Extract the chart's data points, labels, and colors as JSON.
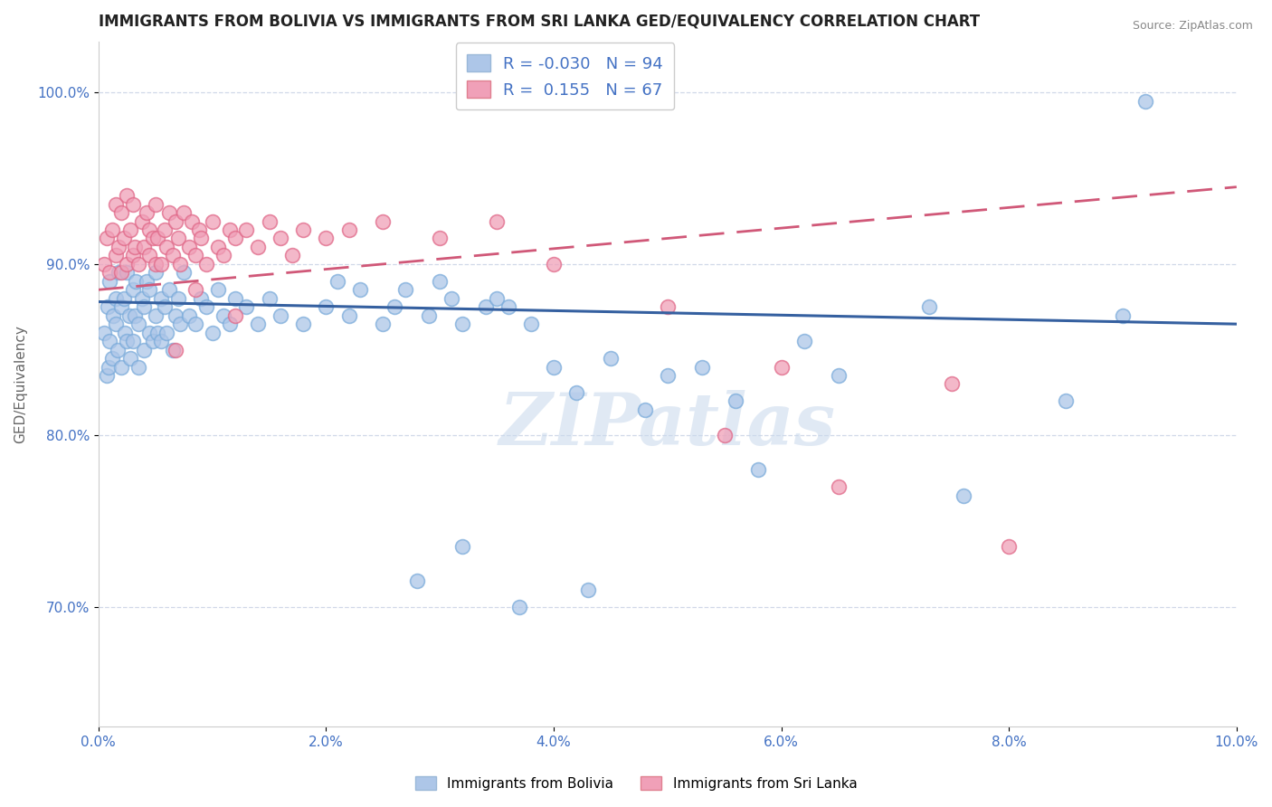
{
  "title": "IMMIGRANTS FROM BOLIVIA VS IMMIGRANTS FROM SRI LANKA GED/EQUIVALENCY CORRELATION CHART",
  "source": "Source: ZipAtlas.com",
  "ylabel": "GED/Equivalency",
  "xlim": [
    0.0,
    10.0
  ],
  "ylim": [
    63.0,
    103.0
  ],
  "xticks": [
    0.0,
    2.0,
    4.0,
    6.0,
    8.0,
    10.0
  ],
  "xtick_labels": [
    "0.0%",
    "2.0%",
    "4.0%",
    "6.0%",
    "8.0%",
    "10.0%"
  ],
  "ytick_labels": [
    "100.0%",
    "90.0%",
    "80.0%",
    "70.0%"
  ],
  "yticks": [
    100.0,
    90.0,
    80.0,
    70.0
  ],
  "bolivia_color": "#adc6e8",
  "srilanka_color": "#f0a0b8",
  "bolivia_R": -0.03,
  "bolivia_N": 94,
  "srilanka_R": 0.155,
  "srilanka_N": 67,
  "bolivia_line_x0": 0.0,
  "bolivia_line_y0": 87.8,
  "bolivia_line_x1": 10.0,
  "bolivia_line_y1": 86.5,
  "srilanka_line_x0": 0.0,
  "srilanka_line_y0": 88.5,
  "srilanka_line_x1": 10.0,
  "srilanka_line_y1": 94.5,
  "bolivia_scatter_x": [
    0.05,
    0.07,
    0.08,
    0.09,
    0.1,
    0.1,
    0.12,
    0.13,
    0.15,
    0.15,
    0.17,
    0.18,
    0.2,
    0.2,
    0.22,
    0.23,
    0.25,
    0.25,
    0.27,
    0.28,
    0.3,
    0.3,
    0.32,
    0.33,
    0.35,
    0.35,
    0.38,
    0.4,
    0.4,
    0.42,
    0.45,
    0.45,
    0.48,
    0.5,
    0.5,
    0.52,
    0.55,
    0.55,
    0.58,
    0.6,
    0.62,
    0.65,
    0.68,
    0.7,
    0.72,
    0.75,
    0.8,
    0.85,
    0.9,
    0.95,
    1.0,
    1.05,
    1.1,
    1.15,
    1.2,
    1.3,
    1.4,
    1.5,
    1.6,
    1.8,
    2.0,
    2.1,
    2.2,
    2.3,
    2.5,
    2.6,
    2.7,
    2.9,
    3.0,
    3.1,
    3.2,
    3.4,
    3.5,
    3.6,
    3.8,
    4.0,
    4.2,
    4.5,
    4.8,
    5.0,
    5.3,
    5.6,
    5.8,
    6.2,
    6.5,
    7.3,
    7.6,
    8.5,
    9.0,
    9.2,
    2.8,
    3.2,
    3.7,
    4.3
  ],
  "bolivia_scatter_y": [
    86.0,
    83.5,
    87.5,
    84.0,
    85.5,
    89.0,
    84.5,
    87.0,
    88.0,
    86.5,
    85.0,
    89.5,
    87.5,
    84.0,
    88.0,
    86.0,
    85.5,
    89.5,
    87.0,
    84.5,
    88.5,
    85.5,
    87.0,
    89.0,
    86.5,
    84.0,
    88.0,
    87.5,
    85.0,
    89.0,
    86.0,
    88.5,
    85.5,
    87.0,
    89.5,
    86.0,
    88.0,
    85.5,
    87.5,
    86.0,
    88.5,
    85.0,
    87.0,
    88.0,
    86.5,
    89.5,
    87.0,
    86.5,
    88.0,
    87.5,
    86.0,
    88.5,
    87.0,
    86.5,
    88.0,
    87.5,
    86.5,
    88.0,
    87.0,
    86.5,
    87.5,
    89.0,
    87.0,
    88.5,
    86.5,
    87.5,
    88.5,
    87.0,
    89.0,
    88.0,
    86.5,
    87.5,
    88.0,
    87.5,
    86.5,
    84.0,
    82.5,
    84.5,
    81.5,
    83.5,
    84.0,
    82.0,
    78.0,
    85.5,
    83.5,
    87.5,
    76.5,
    82.0,
    87.0,
    99.5,
    71.5,
    73.5,
    70.0,
    71.0
  ],
  "srilanka_scatter_x": [
    0.05,
    0.07,
    0.1,
    0.12,
    0.15,
    0.15,
    0.18,
    0.2,
    0.2,
    0.22,
    0.25,
    0.25,
    0.28,
    0.3,
    0.3,
    0.32,
    0.35,
    0.38,
    0.4,
    0.42,
    0.45,
    0.45,
    0.48,
    0.5,
    0.5,
    0.52,
    0.55,
    0.58,
    0.6,
    0.62,
    0.65,
    0.68,
    0.7,
    0.72,
    0.75,
    0.8,
    0.82,
    0.85,
    0.88,
    0.9,
    0.95,
    1.0,
    1.05,
    1.1,
    1.15,
    1.2,
    1.3,
    1.4,
    1.5,
    1.6,
    1.7,
    1.8,
    2.0,
    2.2,
    2.5,
    3.0,
    3.5,
    4.0,
    5.0,
    5.5,
    6.0,
    6.5,
    7.5,
    8.0,
    0.68,
    0.85,
    1.2
  ],
  "srilanka_scatter_y": [
    90.0,
    91.5,
    89.5,
    92.0,
    90.5,
    93.5,
    91.0,
    89.5,
    93.0,
    91.5,
    90.0,
    94.0,
    92.0,
    90.5,
    93.5,
    91.0,
    90.0,
    92.5,
    91.0,
    93.0,
    90.5,
    92.0,
    91.5,
    90.0,
    93.5,
    91.5,
    90.0,
    92.0,
    91.0,
    93.0,
    90.5,
    92.5,
    91.5,
    90.0,
    93.0,
    91.0,
    92.5,
    90.5,
    92.0,
    91.5,
    90.0,
    92.5,
    91.0,
    90.5,
    92.0,
    91.5,
    92.0,
    91.0,
    92.5,
    91.5,
    90.5,
    92.0,
    91.5,
    92.0,
    92.5,
    91.5,
    92.5,
    90.0,
    87.5,
    80.0,
    84.0,
    77.0,
    83.0,
    73.5,
    85.0,
    88.5,
    87.0
  ],
  "watermark": "ZIPatlas",
  "background_color": "#ffffff",
  "grid_color": "#d0d8e8",
  "title_color": "#222222",
  "tick_label_color": "#4472c4"
}
